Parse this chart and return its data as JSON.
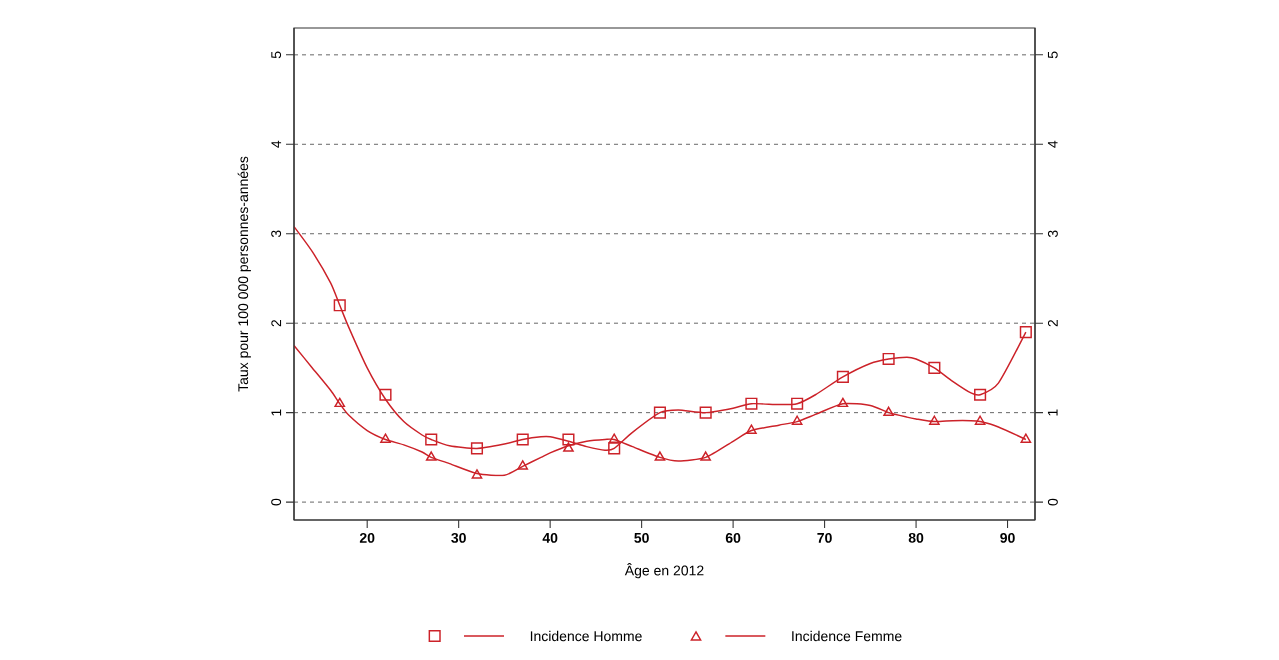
{
  "chart_data": {
    "type": "line",
    "xlabel": "Âge en 2012",
    "ylabel": "Taux pour 100 000 personnes-années",
    "xlim": [
      12,
      93
    ],
    "xticks": [
      20,
      30,
      40,
      50,
      60,
      70,
      80,
      90
    ],
    "ylim": [
      -0.2,
      5.3
    ],
    "yticks": [
      0,
      1,
      2,
      3,
      4,
      5
    ],
    "y2lim": [
      -0.2,
      5.3
    ],
    "y2ticks": [
      0,
      1,
      2,
      3,
      4,
      5
    ],
    "grid": "y",
    "legend": "bottom",
    "series": [
      {
        "name": "Incidence Homme",
        "type": "scatter",
        "marker": "square",
        "color": "#cc2229",
        "x": [
          17,
          22,
          27,
          32,
          37,
          42,
          47,
          52,
          57,
          62,
          67,
          72,
          77,
          82,
          87,
          92
        ],
        "values": [
          2.2,
          1.2,
          0.7,
          0.6,
          0.7,
          0.7,
          0.6,
          1.0,
          1.0,
          1.1,
          1.1,
          1.4,
          1.6,
          1.5,
          1.2,
          1.9
        ]
      },
      {
        "color": "#cc2229",
        "x": [
          12,
          14,
          16,
          17,
          18,
          20,
          22,
          24,
          26,
          27,
          29,
          32,
          35,
          37,
          39,
          40,
          42,
          44,
          46,
          47,
          49,
          52,
          54,
          57,
          60,
          62,
          65,
          67,
          69,
          72,
          75,
          77,
          79,
          80,
          82,
          84,
          86,
          87,
          89,
          92
        ],
        "values": [
          3.08,
          2.8,
          2.45,
          2.2,
          1.95,
          1.5,
          1.15,
          0.9,
          0.75,
          0.7,
          0.63,
          0.6,
          0.65,
          0.7,
          0.73,
          0.73,
          0.68,
          0.62,
          0.58,
          0.6,
          0.78,
          1.0,
          1.03,
          1.0,
          1.05,
          1.1,
          1.09,
          1.1,
          1.2,
          1.4,
          1.55,
          1.6,
          1.62,
          1.6,
          1.5,
          1.35,
          1.22,
          1.2,
          1.33,
          1.9
        ]
      },
      {
        "name": "Incidence Femme",
        "type": "scatter",
        "marker": "triangle",
        "color": "#cc2229",
        "x": [
          17,
          22,
          27,
          32,
          37,
          42,
          47,
          52,
          57,
          62,
          67,
          72,
          77,
          82,
          87,
          92
        ],
        "values": [
          1.1,
          0.7,
          0.5,
          0.3,
          0.4,
          0.6,
          0.7,
          0.5,
          0.5,
          0.8,
          0.9,
          1.1,
          1.0,
          0.9,
          0.9,
          0.7
        ]
      },
      {
        "color": "#cc2229",
        "x": [
          12,
          14,
          16,
          17,
          18,
          20,
          22,
          24,
          26,
          27,
          29,
          32,
          35,
          37,
          39,
          40,
          42,
          44,
          46,
          47,
          49,
          52,
          54,
          57,
          60,
          62,
          65,
          67,
          69,
          72,
          75,
          77,
          79,
          80,
          82,
          84,
          86,
          87,
          89,
          92
        ],
        "values": [
          1.75,
          1.5,
          1.25,
          1.1,
          0.97,
          0.8,
          0.7,
          0.64,
          0.56,
          0.5,
          0.43,
          0.32,
          0.3,
          0.4,
          0.5,
          0.55,
          0.63,
          0.68,
          0.7,
          0.7,
          0.62,
          0.5,
          0.46,
          0.5,
          0.68,
          0.8,
          0.86,
          0.9,
          0.98,
          1.1,
          1.08,
          1.0,
          0.95,
          0.93,
          0.9,
          0.91,
          0.91,
          0.9,
          0.84,
          0.7
        ]
      }
    ]
  }
}
